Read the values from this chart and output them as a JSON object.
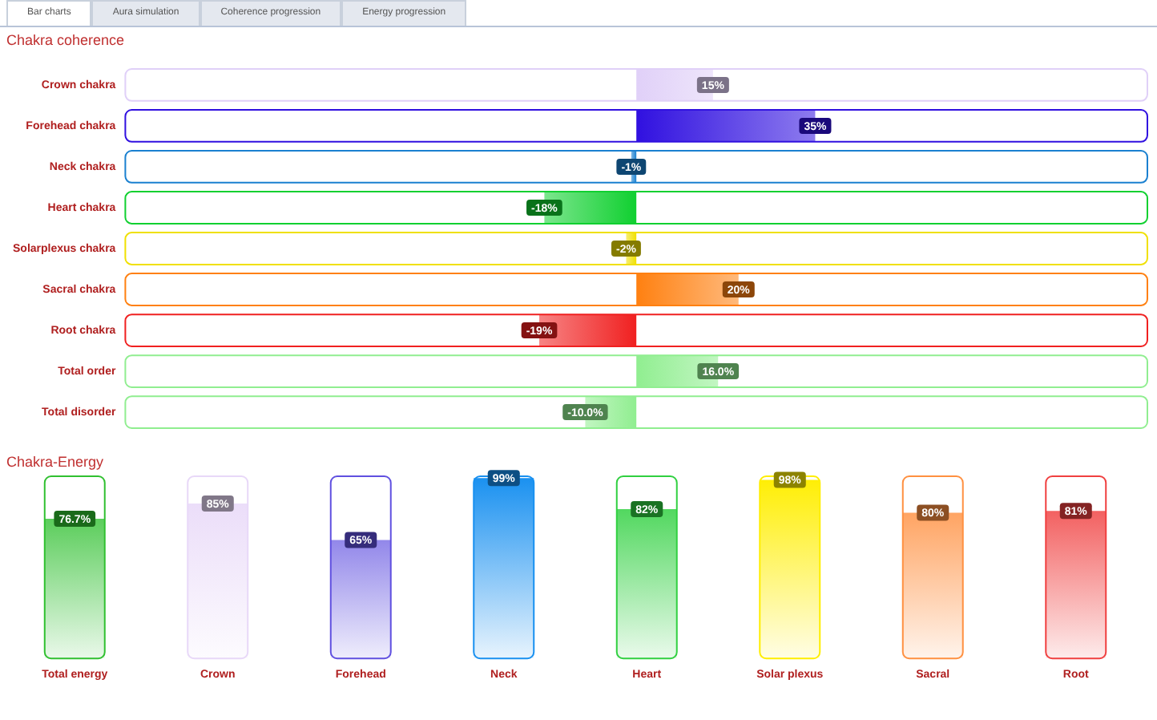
{
  "chart_data": [
    {
      "type": "bar",
      "title": "Chakra coherence",
      "orientation": "horizontal",
      "tick_labels": "y",
      "grid": false,
      "legend": false,
      "annotations": [
        "Bar charts",
        "Aura simulation",
        "Coherence progression",
        "Energy progression"
      ],
      "categories": [
        "Crown chakra",
        "Forehead chakra",
        "Neck chakra",
        "Heart chakra",
        "Solarplexus chakra",
        "Sacral chakra",
        "Root chakra",
        "Total order",
        "Total disorder"
      ],
      "values": [
        15,
        35,
        -1,
        -18,
        -2,
        20,
        -19,
        16.0,
        -10.0
      ],
      "value_labels": [
        "15%",
        "35%",
        "-1%",
        "-18%",
        "-2%",
        "20%",
        "-19%",
        "16.0%",
        "-10.0%"
      ],
      "colors": [
        "#e0d0f8",
        "#3010e0",
        "#1a80d0",
        "#10d030",
        "#f0e000",
        "#ff8010",
        "#f02020",
        "#90ee90",
        "#90ee90"
      ],
      "xlim": [
        -100,
        100
      ]
    },
    {
      "type": "bar",
      "title": "Chakra-Energy",
      "tick_labels": "x",
      "grid": false,
      "legend": false,
      "categories": [
        "Total energy",
        "Crown",
        "Forehead",
        "Neck",
        "Heart",
        "Solar plexus",
        "Sacral",
        "Root"
      ],
      "values": [
        76.7,
        85,
        65,
        99,
        82,
        98,
        80,
        81
      ],
      "value_labels": [
        "76.7%",
        "85%",
        "65%",
        "99%",
        "82%",
        "98%",
        "80%",
        "81%"
      ],
      "colors": [
        "#30c030",
        "#e8d8f8",
        "#6050e0",
        "#1890f0",
        "#30d040",
        "#ffee00",
        "#ff9040",
        "#f04040"
      ],
      "ylim": [
        0,
        100
      ]
    }
  ]
}
